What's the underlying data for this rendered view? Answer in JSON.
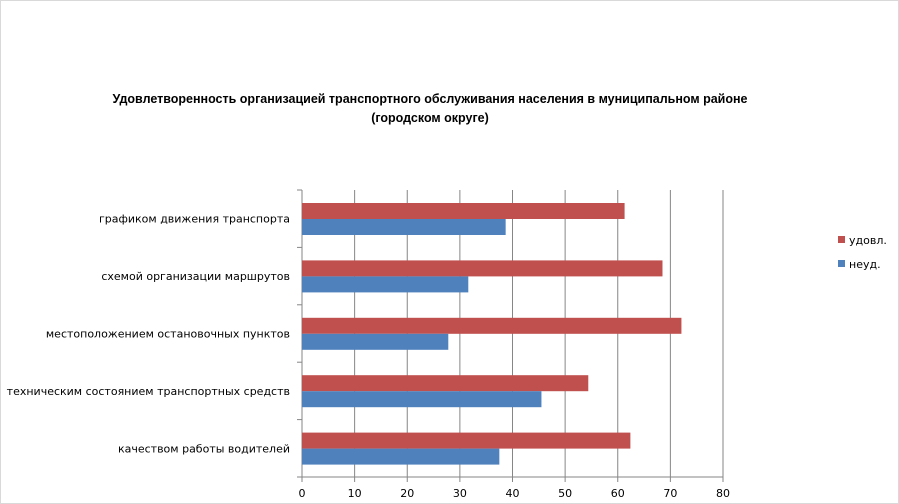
{
  "chart_data": {
    "type": "bar",
    "orientation": "horizontal",
    "title": "Удовлетворенность организацией транспортного обслуживания населения в муниципальном районе",
    "subtitle": "(городском округе)",
    "categories": [
      "графиком  движения  транспорта",
      "схемой организации маршрутов",
      "местоположением  остановочных пунктов",
      "техническим  состоянием транспортных средств",
      "качеством  работы водителей"
    ],
    "series": [
      {
        "name": "удовл.",
        "color": "#c0504d",
        "values": [
          61.3,
          68.5,
          72.1,
          54.4,
          62.4
        ]
      },
      {
        "name": "неуд.",
        "color": "#4f81bd",
        "values": [
          38.7,
          31.6,
          27.8,
          45.5,
          37.5
        ]
      }
    ],
    "xlim": [
      0,
      80
    ],
    "xticks": [
      "0",
      "10",
      "20",
      "30",
      "40",
      "50",
      "60",
      "70",
      "80"
    ],
    "xlabel": "",
    "ylabel": "",
    "grid": true,
    "legend_position": "right"
  }
}
